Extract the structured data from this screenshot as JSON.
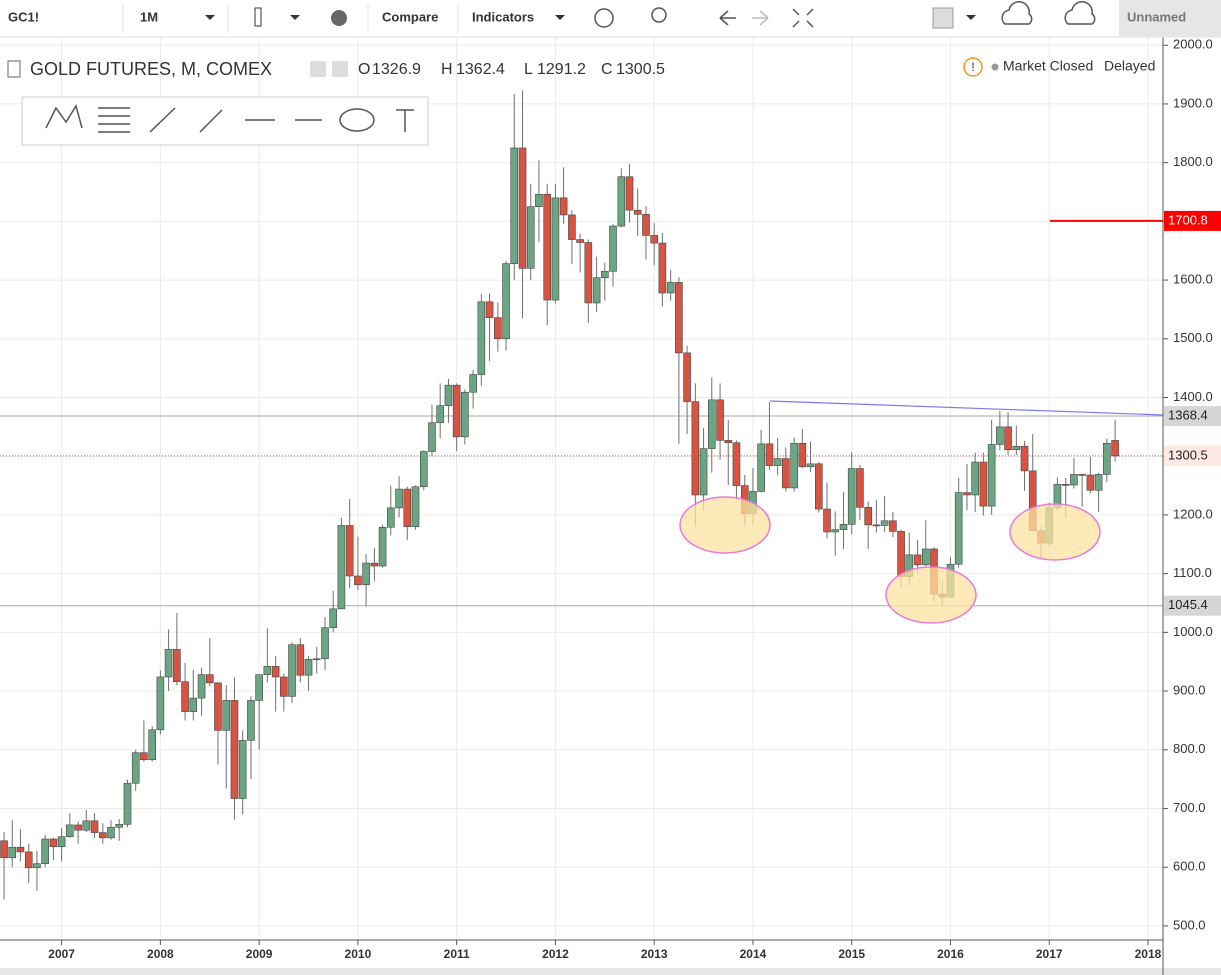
{
  "toolbar": {
    "symbol": "GC1!",
    "interval": "1M",
    "compare": "Compare",
    "indicators": "Indicators",
    "layout": "Unnamed"
  },
  "status": {
    "market": "Market Closed",
    "delay": "Delayed"
  },
  "chart_data": {
    "type": "candlestick",
    "title": "GOLD FUTURES, M, COMEX",
    "ohlc_letters": {
      "open": "O",
      "high": "H",
      "low": "L",
      "close": "C"
    },
    "up_color": "#6ba583",
    "down_color": "#d75442",
    "wick_color": "#6f6f6f",
    "grid": true,
    "xlim": [
      2006.376,
      2018.152
    ],
    "xticks": [
      2007,
      2008,
      2009,
      2010,
      2011,
      2012,
      2013,
      2014,
      2015,
      2016,
      2017,
      2018
    ],
    "ylim": [
      476,
      2014
    ],
    "yticks": [
      {
        "value": 500,
        "label": "500.0"
      },
      {
        "value": 600,
        "label": "600.0"
      },
      {
        "value": 700,
        "label": "700.0"
      },
      {
        "value": 800,
        "label": "800.0"
      },
      {
        "value": 900,
        "label": "900.0"
      },
      {
        "value": 1000,
        "label": "1000.0"
      },
      {
        "value": 1100,
        "label": "1100.0"
      },
      {
        "value": 1200,
        "label": "1200.0"
      },
      {
        "value": 1300,
        "label": "1300.0"
      },
      {
        "value": 1400,
        "label": "1400.0"
      },
      {
        "value": 1500,
        "label": "1500.0"
      },
      {
        "value": 1600,
        "label": "1600.0"
      },
      {
        "value": 1700,
        "label": "1700.0"
      },
      {
        "value": 1800,
        "label": "1800.0"
      },
      {
        "value": 1900,
        "label": "1900.0"
      },
      {
        "value": 2000,
        "label": "2000.0"
      }
    ],
    "price_lines": [
      {
        "value": 1368.4,
        "color": "#aaaaaa",
        "label_bg": "#d6d6d6",
        "label_color": "#222222"
      },
      {
        "value": 1045.4,
        "color": "#aaaaaa",
        "label_bg": "#d6d6d6",
        "label_color": "#222222"
      },
      {
        "value": 1700.8,
        "color": "#ff0000",
        "label_bg": "#ff0000",
        "label_color": "#ffffff"
      }
    ],
    "last_color": "#e04040",
    "x": [
      2006.417,
      2006.5,
      2006.583,
      2006.667,
      2006.75,
      2006.833,
      2006.917,
      2007.0,
      2007.083,
      2007.167,
      2007.25,
      2007.333,
      2007.417,
      2007.5,
      2007.583,
      2007.667,
      2007.75,
      2007.833,
      2007.917,
      2008.0,
      2008.083,
      2008.167,
      2008.25,
      2008.333,
      2008.417,
      2008.5,
      2008.583,
      2008.667,
      2008.75,
      2008.833,
      2008.917,
      2009.0,
      2009.083,
      2009.167,
      2009.25,
      2009.333,
      2009.417,
      2009.5,
      2009.583,
      2009.667,
      2009.75,
      2009.833,
      2009.917,
      2010.0,
      2010.083,
      2010.167,
      2010.25,
      2010.333,
      2010.417,
      2010.5,
      2010.583,
      2010.667,
      2010.75,
      2010.833,
      2010.917,
      2011.0,
      2011.083,
      2011.167,
      2011.25,
      2011.333,
      2011.417,
      2011.5,
      2011.583,
      2011.667,
      2011.75,
      2011.833,
      2011.917,
      2012.0,
      2012.083,
      2012.167,
      2012.25,
      2012.333,
      2012.417,
      2012.5,
      2012.583,
      2012.667,
      2012.75,
      2012.833,
      2012.917,
      2013.0,
      2013.083,
      2013.167,
      2013.25,
      2013.333,
      2013.417,
      2013.5,
      2013.583,
      2013.667,
      2013.75,
      2013.833,
      2013.917,
      2014.0,
      2014.083,
      2014.167,
      2014.25,
      2014.333,
      2014.417,
      2014.5,
      2014.583,
      2014.667,
      2014.75,
      2014.833,
      2014.917,
      2015.0,
      2015.083,
      2015.167,
      2015.25,
      2015.333,
      2015.417,
      2015.5,
      2015.583,
      2015.667,
      2015.75,
      2015.833,
      2015.917,
      2016.0,
      2016.083,
      2016.167,
      2016.25,
      2016.333,
      2016.417,
      2016.5,
      2016.583,
      2016.667,
      2016.75,
      2016.833,
      2016.917,
      2017.0,
      2017.083,
      2017.167,
      2017.25,
      2017.333,
      2017.417,
      2017.5,
      2017.583,
      2017.667
    ],
    "open": [
      645,
      616,
      634,
      626,
      599,
      606,
      648,
      635,
      652,
      672,
      663,
      679,
      659,
      650,
      668,
      673,
      743,
      795,
      783,
      834,
      924,
      971,
      916,
      865,
      888,
      928,
      914,
      833,
      884,
      717,
      816,
      884,
      928,
      942,
      924,
      891,
      979,
      927,
      954,
      955,
      1008,
      1040,
      1182,
      1096,
      1081,
      1118,
      1113,
      1179,
      1212,
      1244,
      1180,
      1248,
      1308,
      1357,
      1386,
      1421,
      1333,
      1409,
      1439,
      1563,
      1536,
      1500,
      1628,
      1825,
      1620,
      1725,
      1746,
      1566,
      1740,
      1711,
      1669,
      1664,
      1561,
      1604,
      1615,
      1692,
      1776,
      1719,
      1712,
      1676,
      1663,
      1578,
      1596,
      1476,
      1393,
      1234,
      1313,
      1396,
      1327,
      1323,
      1250,
      1202,
      1240,
      1321,
      1284,
      1296,
      1246,
      1322,
      1282,
      1287,
      1210,
      1171,
      1175,
      1184,
      1279,
      1213,
      1183,
      1182,
      1190,
      1172,
      1095,
      1132,
      1115,
      1142,
      1065,
      1060,
      1116,
      1238,
      1234,
      1290,
      1215,
      1320,
      1350,
      1311,
      1317,
      1275,
      1173,
      1152,
      1212,
      1252,
      1251,
      1269,
      1268,
      1242,
      1269,
      1326.9
    ],
    "high": [
      660,
      680,
      665,
      640,
      628,
      655,
      650,
      667,
      692,
      678,
      698,
      692,
      675,
      680,
      682,
      749,
      800,
      850,
      840,
      935,
      1005,
      1033,
      948,
      936,
      940,
      990,
      915,
      910,
      923,
      833,
      891,
      928,
      1007,
      960,
      930,
      983,
      990,
      960,
      975,
      1026,
      1071,
      1195,
      1227,
      1163,
      1133,
      1144,
      1183,
      1250,
      1266,
      1248,
      1250,
      1310,
      1388,
      1424,
      1432,
      1424,
      1414,
      1447,
      1576,
      1577,
      1562,
      1632,
      1917,
      1923,
      1764,
      1804,
      1764,
      1764,
      1792,
      1719,
      1679,
      1669,
      1640,
      1630,
      1695,
      1790,
      1798,
      1756,
      1726,
      1697,
      1680,
      1617,
      1605,
      1488,
      1424,
      1348,
      1434,
      1424,
      1362,
      1327,
      1268,
      1280,
      1345,
      1392,
      1331,
      1315,
      1332,
      1346,
      1325,
      1290,
      1255,
      1206,
      1239,
      1307,
      1285,
      1223,
      1225,
      1232,
      1205,
      1175,
      1170,
      1157,
      1191,
      1145,
      1088,
      1128,
      1263,
      1287,
      1306,
      1306,
      1362,
      1377,
      1375,
      1352,
      1326,
      1338,
      1180,
      1221,
      1264,
      1263,
      1297,
      1270,
      1299,
      1272,
      1330,
      1362.4
    ],
    "low": [
      545,
      600,
      610,
      573,
      560,
      600,
      612,
      610,
      650,
      640,
      660,
      650,
      640,
      647,
      645,
      668,
      730,
      780,
      780,
      826,
      900,
      910,
      850,
      850,
      858,
      908,
      775,
      734,
      681,
      690,
      750,
      800,
      915,
      865,
      865,
      880,
      915,
      900,
      930,
      936,
      1000,
      1040,
      1075,
      1072,
      1044,
      1087,
      1110,
      1165,
      1196,
      1157,
      1175,
      1242,
      1300,
      1330,
      1357,
      1309,
      1320,
      1381,
      1420,
      1462,
      1478,
      1480,
      1600,
      1535,
      1600,
      1665,
      1523,
      1560,
      1695,
      1627,
      1613,
      1527,
      1546,
      1565,
      1589,
      1690,
      1698,
      1675,
      1635,
      1625,
      1555,
      1565,
      1321,
      1338,
      1180,
      1208,
      1272,
      1294,
      1251,
      1225,
      1180,
      1183,
      1238,
      1277,
      1268,
      1240,
      1240,
      1280,
      1273,
      1204,
      1160,
      1131,
      1142,
      1167,
      1191,
      1142,
      1170,
      1171,
      1162,
      1077,
      1080,
      1099,
      1113,
      1052,
      1046,
      1058,
      1110,
      1208,
      1205,
      1199,
      1200,
      1310,
      1302,
      1302,
      1241,
      1171,
      1124,
      1147,
      1207,
      1195,
      1245,
      1214,
      1237,
      1205,
      1256,
      1291.2
    ],
    "close": [
      616,
      634,
      626,
      599,
      606,
      648,
      635,
      652,
      672,
      663,
      679,
      659,
      650,
      668,
      673,
      743,
      795,
      783,
      834,
      924,
      971,
      916,
      865,
      888,
      928,
      914,
      833,
      884,
      717,
      816,
      884,
      928,
      942,
      924,
      891,
      979,
      927,
      954,
      955,
      1008,
      1040,
      1182,
      1096,
      1081,
      1118,
      1113,
      1179,
      1212,
      1244,
      1180,
      1248,
      1308,
      1357,
      1386,
      1421,
      1333,
      1409,
      1439,
      1563,
      1536,
      1500,
      1628,
      1825,
      1620,
      1725,
      1746,
      1566,
      1740,
      1711,
      1669,
      1664,
      1561,
      1604,
      1615,
      1692,
      1776,
      1719,
      1712,
      1676,
      1663,
      1578,
      1596,
      1476,
      1393,
      1234,
      1313,
      1396,
      1327,
      1323,
      1250,
      1202,
      1240,
      1321,
      1284,
      1296,
      1246,
      1322,
      1282,
      1287,
      1210,
      1171,
      1175,
      1184,
      1279,
      1213,
      1183,
      1182,
      1190,
      1172,
      1095,
      1132,
      1115,
      1142,
      1065,
      1060,
      1116,
      1238,
      1234,
      1290,
      1215,
      1320,
      1350,
      1311,
      1317,
      1275,
      1173,
      1152,
      1212,
      1252,
      1251,
      1269,
      1268,
      1242,
      1269,
      1322,
      1300.5
    ]
  }
}
